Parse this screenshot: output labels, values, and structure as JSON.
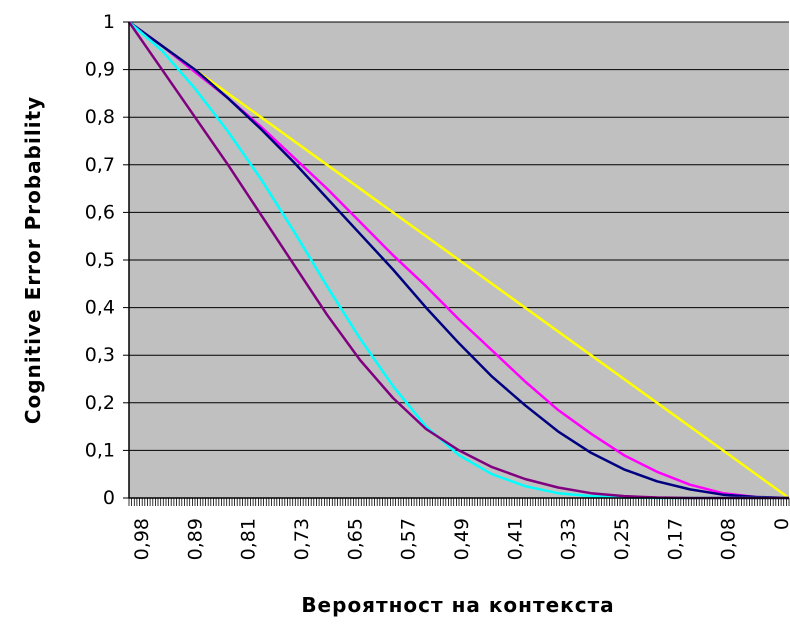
{
  "chart_data": {
    "type": "line",
    "title": "",
    "xlabel": "Вероятност на контекста",
    "ylabel": "Cognitive Error Probability",
    "x_reversed": true,
    "xlim": [
      1,
      0
    ],
    "ylim": [
      0,
      1
    ],
    "grid": "horizontal",
    "plot_background": "#c0c0c0",
    "x_tick_labels": [
      "0,98",
      "0,89",
      "0,81",
      "0,73",
      "0,65",
      "0,57",
      "0,49",
      "0,41",
      "0,33",
      "0,25",
      "0,17",
      "0,08",
      "0"
    ],
    "y_tick_labels": [
      "0",
      "0,1",
      "0,2",
      "0,3",
      "0,4",
      "0,5",
      "0,6",
      "0,7",
      "0,8",
      "0,9",
      "1"
    ],
    "y_ticks": [
      0,
      0.1,
      0.2,
      0.3,
      0.4,
      0.5,
      0.6,
      0.7,
      0.8,
      0.9,
      1
    ],
    "series": [
      {
        "color": "#ffff00",
        "x": [
          1,
          0.9,
          0.8,
          0.7,
          0.6,
          0.5,
          0.4,
          0.3,
          0.2,
          0.1,
          0
        ],
        "y": [
          1,
          0.9,
          0.8,
          0.7,
          0.6,
          0.5,
          0.4,
          0.3,
          0.2,
          0.1,
          0
        ]
      },
      {
        "color": "#ff00ff",
        "x": [
          1,
          0.95,
          0.9,
          0.85,
          0.8,
          0.75,
          0.7,
          0.65,
          0.6,
          0.55,
          0.5,
          0.45,
          0.4,
          0.35,
          0.3,
          0.25,
          0.2,
          0.15,
          0.1,
          0.05,
          0
        ],
        "y": [
          1,
          0.95,
          0.895,
          0.84,
          0.78,
          0.715,
          0.65,
          0.58,
          0.51,
          0.445,
          0.375,
          0.31,
          0.245,
          0.185,
          0.135,
          0.09,
          0.055,
          0.028,
          0.01,
          0.002,
          0
        ]
      },
      {
        "color": "#000080",
        "x": [
          1,
          0.95,
          0.9,
          0.85,
          0.8,
          0.75,
          0.7,
          0.65,
          0.6,
          0.55,
          0.5,
          0.45,
          0.4,
          0.35,
          0.3,
          0.25,
          0.2,
          0.15,
          0.1,
          0.05,
          0
        ],
        "y": [
          1,
          0.95,
          0.9,
          0.84,
          0.775,
          0.705,
          0.63,
          0.555,
          0.48,
          0.4,
          0.325,
          0.255,
          0.195,
          0.14,
          0.095,
          0.06,
          0.035,
          0.018,
          0.007,
          0.002,
          0
        ]
      },
      {
        "color": "#00ffff",
        "x": [
          1,
          0.95,
          0.9,
          0.85,
          0.8,
          0.75,
          0.7,
          0.65,
          0.6,
          0.55,
          0.5,
          0.45,
          0.4,
          0.35,
          0.3,
          0.25,
          0.2,
          0.15,
          0.1,
          0.05,
          0
        ],
        "y": [
          1,
          0.94,
          0.86,
          0.77,
          0.67,
          0.56,
          0.445,
          0.335,
          0.235,
          0.15,
          0.09,
          0.05,
          0.025,
          0.01,
          0.004,
          0.001,
          0,
          0,
          0,
          0,
          0
        ]
      },
      {
        "color": "#800080",
        "x": [
          1,
          0.95,
          0.9,
          0.85,
          0.8,
          0.75,
          0.7,
          0.65,
          0.6,
          0.55,
          0.5,
          0.45,
          0.4,
          0.35,
          0.3,
          0.25,
          0.2,
          0.15,
          0.1,
          0.05,
          0
        ],
        "y": [
          1,
          0.9,
          0.8,
          0.7,
          0.595,
          0.49,
          0.385,
          0.29,
          0.21,
          0.145,
          0.1,
          0.065,
          0.04,
          0.022,
          0.01,
          0.004,
          0.001,
          0,
          0,
          0,
          0
        ]
      }
    ]
  }
}
